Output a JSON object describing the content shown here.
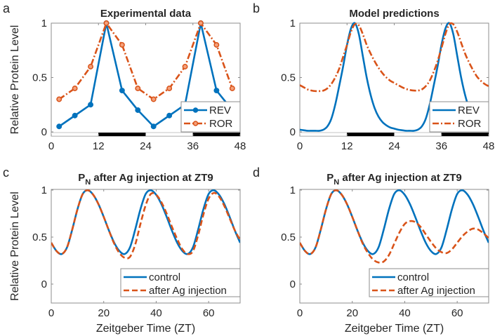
{
  "colors": {
    "rev": "#0072BD",
    "ror": "#D95319",
    "axis": "#808080",
    "night": "#000000"
  },
  "chart_data": [
    {
      "panel_label": "a",
      "type": "line",
      "title": "Experimental data",
      "xlabel": "",
      "ylabel": "Relative Protein Level",
      "xlim": [
        0,
        48
      ],
      "ylim": [
        0,
        1
      ],
      "xticks": [
        "0",
        "12",
        "24",
        "36",
        "48"
      ],
      "yticks": [
        "0",
        "0.5",
        "1"
      ],
      "grid": false,
      "legend": "bottom-right",
      "markers": true,
      "light_dark_bar": [
        {
          "from": 0,
          "to": 12,
          "phase": "light"
        },
        {
          "from": 12,
          "to": 24,
          "phase": "dark"
        },
        {
          "from": 24,
          "to": 36,
          "phase": "light"
        },
        {
          "from": 36,
          "to": 48,
          "phase": "dark"
        }
      ],
      "x": [
        2,
        6,
        10,
        14,
        18,
        22,
        26,
        30,
        34,
        38,
        42,
        46
      ],
      "series": [
        {
          "name": "REV",
          "style": "solid",
          "color": "#0072BD",
          "values": [
            0.05,
            0.15,
            0.25,
            1.0,
            0.38,
            0.2,
            0.05,
            0.15,
            0.25,
            1.0,
            0.38,
            0.2
          ]
        },
        {
          "name": "ROR",
          "style": "dashdot",
          "color": "#D95319",
          "values": [
            0.3,
            0.4,
            0.6,
            1.0,
            0.8,
            0.4,
            0.3,
            0.4,
            0.6,
            1.0,
            0.8,
            0.4
          ]
        }
      ]
    },
    {
      "panel_label": "b",
      "type": "line",
      "title": "Model predictions",
      "xlabel": "",
      "ylabel": "",
      "xlim": [
        0,
        48
      ],
      "ylim": [
        0,
        1
      ],
      "xticks": [
        "0",
        "12",
        "24",
        "36",
        "48"
      ],
      "yticks": [
        "0",
        "0.5",
        "1"
      ],
      "grid": false,
      "legend": "bottom-right",
      "markers": false,
      "light_dark_bar": [
        {
          "from": 0,
          "to": 12,
          "phase": "light"
        },
        {
          "from": 12,
          "to": 24,
          "phase": "dark"
        },
        {
          "from": 24,
          "to": 36,
          "phase": "light"
        },
        {
          "from": 36,
          "to": 48,
          "phase": "dark"
        }
      ],
      "x": [
        0,
        1,
        2,
        3,
        4,
        5,
        6,
        7,
        8,
        9,
        10,
        11,
        12,
        13,
        14,
        15,
        16,
        17,
        18,
        19,
        20,
        21,
        22,
        23,
        24,
        25,
        26,
        27,
        28,
        29,
        30,
        31,
        32,
        33,
        34,
        35,
        36,
        37,
        38,
        39,
        40,
        41,
        42,
        43,
        44,
        45,
        46,
        47,
        48
      ],
      "series": [
        {
          "name": "REV",
          "style": "solid",
          "color": "#0072BD",
          "values": [
            0.02,
            0.015,
            0.01,
            0.01,
            0.01,
            0.01,
            0.02,
            0.05,
            0.12,
            0.25,
            0.42,
            0.6,
            0.8,
            0.95,
            1.0,
            0.9,
            0.7,
            0.5,
            0.34,
            0.22,
            0.14,
            0.09,
            0.06,
            0.04,
            0.03,
            0.02,
            0.015,
            0.01,
            0.01,
            0.01,
            0.02,
            0.05,
            0.12,
            0.25,
            0.42,
            0.6,
            0.8,
            0.95,
            1.0,
            0.9,
            0.7,
            0.5,
            0.34,
            0.22,
            0.14,
            0.09,
            0.06,
            0.04,
            0.03
          ]
        },
        {
          "name": "ROR",
          "style": "dashdot",
          "color": "#D95319",
          "values": [
            0.43,
            0.41,
            0.39,
            0.38,
            0.375,
            0.375,
            0.38,
            0.4,
            0.44,
            0.5,
            0.58,
            0.69,
            0.8,
            0.92,
            0.99,
            0.98,
            0.9,
            0.8,
            0.72,
            0.65,
            0.59,
            0.54,
            0.5,
            0.47,
            0.45,
            0.43,
            0.41,
            0.395,
            0.385,
            0.38,
            0.38,
            0.39,
            0.42,
            0.47,
            0.55,
            0.65,
            0.77,
            0.9,
            0.99,
            0.99,
            0.92,
            0.82,
            0.72,
            0.64,
            0.57,
            0.51,
            0.47,
            0.44,
            0.42
          ]
        }
      ]
    },
    {
      "panel_label": "c",
      "type": "line",
      "title": {
        "main": "P",
        "sub": "N",
        "rest": " after Ag injection at ZT9"
      },
      "xlabel": "Zeitgeber Time (ZT)",
      "ylabel": "Relative Protein Level",
      "xlim": [
        0,
        72
      ],
      "ylim": [
        -0.2,
        1
      ],
      "xticks": [
        "0",
        "20",
        "40",
        "60"
      ],
      "yticks": [
        "0",
        "0.5",
        "1"
      ],
      "grid": false,
      "legend": "bottom-right",
      "markers": false,
      "x": [
        0,
        2,
        4,
        6,
        8,
        10,
        12,
        14,
        16,
        18,
        20,
        22,
        24,
        26,
        28,
        30,
        32,
        34,
        36,
        38,
        40,
        42,
        44,
        46,
        48,
        50,
        52,
        54,
        56,
        58,
        60,
        62,
        64,
        66,
        68,
        70,
        72
      ],
      "series": [
        {
          "name": "control",
          "style": "solid",
          "color": "#0072BD",
          "values": [
            0.44,
            0.352,
            0.32,
            0.39,
            0.58,
            0.797,
            0.959,
            0.998,
            0.95,
            0.85,
            0.715,
            0.569,
            0.44,
            0.352,
            0.32,
            0.39,
            0.58,
            0.797,
            0.959,
            0.998,
            0.95,
            0.85,
            0.715,
            0.569,
            0.44,
            0.352,
            0.32,
            0.39,
            0.58,
            0.797,
            0.959,
            0.998,
            0.95,
            0.85,
            0.715,
            0.569,
            0.44
          ]
        },
        {
          "name": "after Ag injection",
          "style": "dashed",
          "color": "#D95319",
          "values": [
            0.44,
            0.352,
            0.32,
            0.39,
            0.58,
            0.797,
            0.959,
            0.998,
            0.95,
            0.85,
            0.715,
            0.569,
            0.43,
            0.33,
            0.28,
            0.29,
            0.42,
            0.64,
            0.84,
            0.96,
            0.95,
            0.87,
            0.75,
            0.61,
            0.48,
            0.37,
            0.32,
            0.35,
            0.52,
            0.74,
            0.91,
            0.97,
            0.93,
            0.83,
            0.7,
            0.57,
            0.47
          ]
        }
      ]
    },
    {
      "panel_label": "d",
      "type": "line",
      "title": {
        "main": "P",
        "sub": "N",
        "rest": " after Ag injection at ZT9"
      },
      "xlabel": "Zeitgeber Time (ZT)",
      "ylabel": "",
      "xlim": [
        0,
        72
      ],
      "ylim": [
        -0.2,
        1
      ],
      "xticks": [
        "0",
        "20",
        "40",
        "60"
      ],
      "yticks": [
        "0",
        "0.5",
        "1"
      ],
      "grid": false,
      "legend": "bottom-right",
      "markers": false,
      "x": [
        0,
        2,
        4,
        6,
        8,
        10,
        12,
        14,
        16,
        18,
        20,
        22,
        24,
        26,
        28,
        30,
        32,
        34,
        36,
        38,
        40,
        42,
        44,
        46,
        48,
        50,
        52,
        54,
        56,
        58,
        60,
        62,
        64,
        66,
        68,
        70,
        72
      ],
      "series": [
        {
          "name": "control",
          "style": "solid",
          "color": "#0072BD",
          "values": [
            0.44,
            0.352,
            0.32,
            0.39,
            0.58,
            0.797,
            0.959,
            0.998,
            0.95,
            0.85,
            0.715,
            0.569,
            0.44,
            0.352,
            0.32,
            0.39,
            0.58,
            0.797,
            0.959,
            0.998,
            0.95,
            0.85,
            0.715,
            0.569,
            0.44,
            0.352,
            0.32,
            0.39,
            0.58,
            0.797,
            0.959,
            0.998,
            0.95,
            0.85,
            0.715,
            0.569,
            0.44
          ]
        },
        {
          "name": "after Ag injection",
          "style": "dashed",
          "color": "#D95319",
          "values": [
            0.44,
            0.352,
            0.32,
            0.39,
            0.58,
            0.797,
            0.959,
            0.998,
            0.95,
            0.85,
            0.715,
            0.569,
            0.43,
            0.33,
            0.26,
            0.23,
            0.24,
            0.31,
            0.43,
            0.55,
            0.64,
            0.67,
            0.66,
            0.61,
            0.53,
            0.45,
            0.38,
            0.34,
            0.33,
            0.37,
            0.44,
            0.51,
            0.56,
            0.59,
            0.58,
            0.54,
            0.49
          ]
        }
      ]
    }
  ]
}
